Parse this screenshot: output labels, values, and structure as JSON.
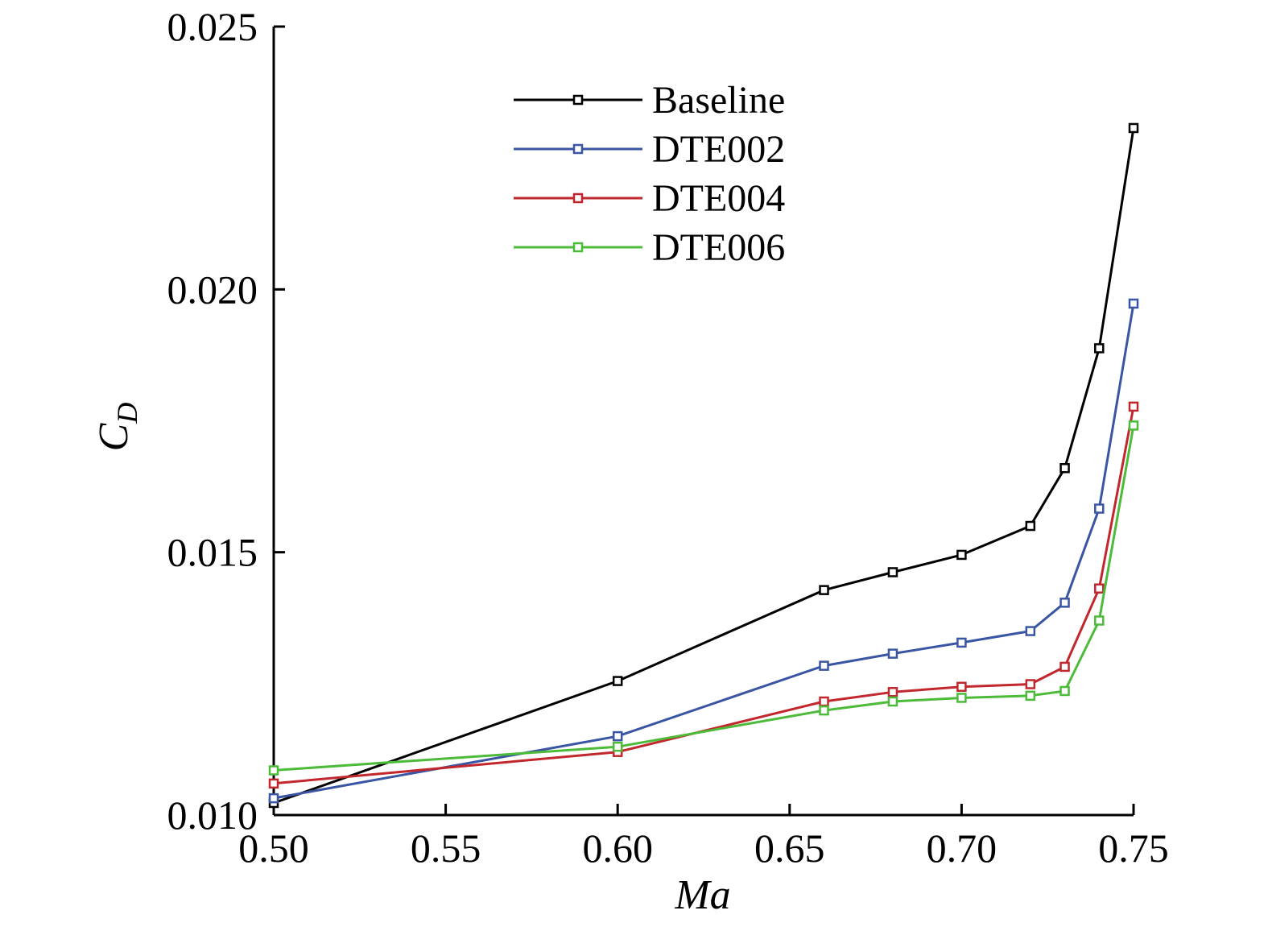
{
  "chart_data": {
    "type": "line",
    "title": "",
    "xlabel": "Ma",
    "ylabel_main": "C",
    "ylabel_sub": "D",
    "xlim": [
      0.5,
      0.75
    ],
    "ylim": [
      0.01,
      0.025
    ],
    "x_ticks": [
      0.5,
      0.55,
      0.6,
      0.65,
      0.7,
      0.75
    ],
    "x_tick_labels": [
      "0.50",
      "0.55",
      "0.60",
      "0.65",
      "0.70",
      "0.75"
    ],
    "y_ticks": [
      0.01,
      0.015,
      0.02,
      0.025
    ],
    "y_tick_labels": [
      "0.010",
      "0.015",
      "0.020",
      "0.025"
    ],
    "grid": false,
    "legend_position": "top-center",
    "x": [
      0.5,
      0.6,
      0.66,
      0.68,
      0.7,
      0.72,
      0.73,
      0.74,
      0.75
    ],
    "series": [
      {
        "name": "Baseline",
        "color": "#000000",
        "values": [
          0.01023,
          0.01255,
          0.01428,
          0.01462,
          0.01495,
          0.0155,
          0.0166,
          0.01888,
          0.02307
        ]
      },
      {
        "name": "DTE002",
        "color": "#3a55a4",
        "values": [
          0.01032,
          0.0115,
          0.01284,
          0.01307,
          0.01328,
          0.0135,
          0.01404,
          0.01583,
          0.01973
        ]
      },
      {
        "name": "DTE004",
        "color": "#c1272d",
        "values": [
          0.0106,
          0.0112,
          0.01216,
          0.01234,
          0.01244,
          0.01249,
          0.01282,
          0.01431,
          0.01777
        ]
      },
      {
        "name": "DTE006",
        "color": "#4dbb3a",
        "values": [
          0.01085,
          0.0113,
          0.01199,
          0.01216,
          0.01223,
          0.01227,
          0.01236,
          0.0137,
          0.01741
        ]
      }
    ]
  }
}
